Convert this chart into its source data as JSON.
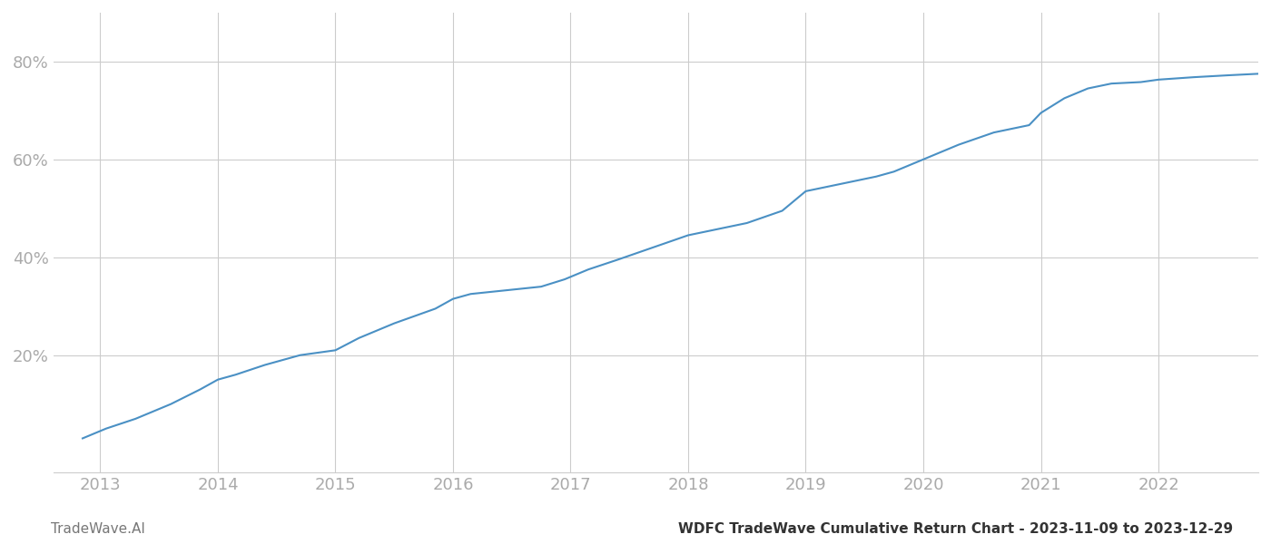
{
  "title_right": "WDFC TradeWave Cumulative Return Chart - 2023-11-09 to 2023-12-29",
  "title_left": "TradeWave.AI",
  "line_color": "#4a90c4",
  "background_color": "#ffffff",
  "grid_color": "#cccccc",
  "x_years": [
    2013,
    2014,
    2015,
    2016,
    2017,
    2018,
    2019,
    2020,
    2021,
    2022
  ],
  "yticks": [
    0.2,
    0.4,
    0.6,
    0.8
  ],
  "ylim": [
    -0.04,
    0.9
  ],
  "xlim": [
    2012.6,
    2022.85
  ],
  "data_x": [
    2012.85,
    2013.05,
    2013.3,
    2013.6,
    2013.85,
    2014.0,
    2014.15,
    2014.4,
    2014.7,
    2015.0,
    2015.2,
    2015.5,
    2015.85,
    2016.0,
    2016.15,
    2016.35,
    2016.55,
    2016.75,
    2016.95,
    2017.15,
    2017.4,
    2017.7,
    2018.0,
    2018.2,
    2018.5,
    2018.8,
    2019.0,
    2019.2,
    2019.4,
    2019.6,
    2019.75,
    2020.0,
    2020.3,
    2020.6,
    2020.9,
    2021.0,
    2021.2,
    2021.4,
    2021.6,
    2021.85,
    2022.0,
    2022.3,
    2022.6,
    2022.85
  ],
  "data_y": [
    0.03,
    0.05,
    0.07,
    0.1,
    0.13,
    0.15,
    0.16,
    0.18,
    0.2,
    0.21,
    0.235,
    0.265,
    0.295,
    0.315,
    0.325,
    0.33,
    0.335,
    0.34,
    0.355,
    0.375,
    0.395,
    0.42,
    0.445,
    0.455,
    0.47,
    0.495,
    0.535,
    0.545,
    0.555,
    0.565,
    0.575,
    0.6,
    0.63,
    0.655,
    0.67,
    0.695,
    0.725,
    0.745,
    0.755,
    0.758,
    0.763,
    0.768,
    0.772,
    0.775
  ],
  "tick_label_color": "#aaaaaa",
  "tick_fontsize": 13,
  "footer_fontsize": 11,
  "footer_left_color": "#777777",
  "footer_right_color": "#333333"
}
